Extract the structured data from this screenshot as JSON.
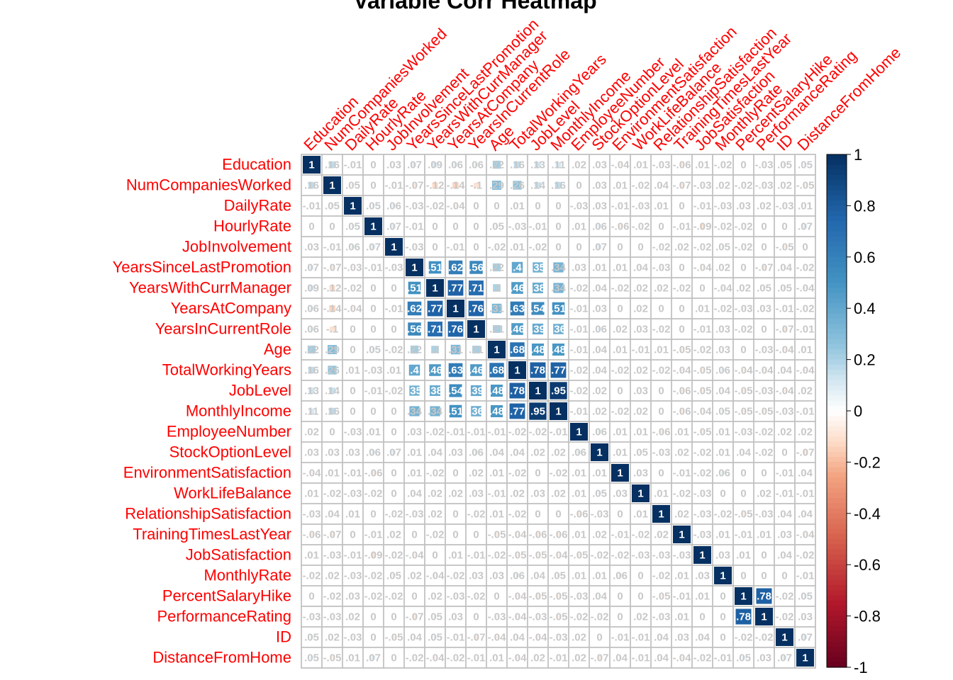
{
  "chart_data": {
    "type": "heatmap",
    "title": "Variable Corr Heatmap",
    "variables": [
      "Education",
      "NumCompaniesWorked",
      "DailyRate",
      "HourlyRate",
      "JobInvolvement",
      "YearsSinceLastPromotion",
      "YearsWithCurrManager",
      "YearsAtCompany",
      "YearsInCurrentRole",
      "Age",
      "TotalWorkingYears",
      "JobLevel",
      "MonthlyIncome",
      "EmployeeNumber",
      "StockOptionLevel",
      "EnvironmentSatisfaction",
      "WorkLifeBalance",
      "RelationshipSatisfaction",
      "TrainingTimesLastYear",
      "JobSatisfaction",
      "MonthlyRate",
      "PercentSalaryHike",
      "PerformanceRating",
      "ID",
      "DistanceFromHome"
    ],
    "matrix": [
      [
        1,
        0.16,
        -0.01,
        0,
        0.03,
        0.07,
        0.09,
        0.06,
        0.06,
        0.22,
        0.16,
        0.13,
        0.11,
        0.02,
        0.03,
        -0.04,
        0.01,
        -0.03,
        -0.06,
        0.01,
        -0.02,
        0,
        -0.03,
        0.05,
        0.05
      ],
      [
        0.16,
        1,
        0.05,
        0,
        -0.01,
        -0.07,
        -0.12,
        -0.14,
        -0.1,
        0.29,
        0.26,
        0.14,
        0.16,
        0,
        0.03,
        0.01,
        -0.02,
        0.04,
        -0.07,
        -0.03,
        0.02,
        -0.02,
        -0.03,
        0.02,
        -0.05
      ],
      [
        -0.01,
        0.05,
        1,
        0.05,
        0.06,
        -0.03,
        -0.02,
        -0.04,
        0,
        0,
        0.01,
        0,
        0,
        -0.03,
        0.03,
        -0.01,
        -0.03,
        0.01,
        0,
        -0.01,
        -0.03,
        0.03,
        0.02,
        -0.03,
        0.01
      ],
      [
        0,
        0,
        0.05,
        1,
        0.07,
        -0.01,
        0,
        0,
        0,
        0.05,
        -0.03,
        -0.01,
        0,
        0.01,
        0.06,
        -0.06,
        -0.02,
        0,
        -0.01,
        -0.09,
        -0.02,
        -0.02,
        0,
        0,
        0.07
      ],
      [
        0.03,
        -0.01,
        0.06,
        0.07,
        1,
        -0.03,
        0,
        -0.01,
        0,
        -0.02,
        0.01,
        -0.02,
        0,
        0,
        0.07,
        0,
        0,
        -0.02,
        0.02,
        -0.02,
        0.05,
        -0.02,
        0,
        -0.05,
        0
      ],
      [
        0.07,
        -0.07,
        -0.03,
        -0.01,
        -0.03,
        1,
        0.51,
        0.62,
        0.56,
        0.22,
        0.4,
        0.35,
        0.34,
        0.03,
        0.01,
        0.01,
        0.04,
        -0.03,
        0,
        -0.04,
        0.02,
        0,
        -0.07,
        0.04,
        -0.02
      ],
      [
        0.09,
        -0.12,
        -0.02,
        0,
        0,
        0.51,
        1,
        0.77,
        0.71,
        0.2,
        0.46,
        0.38,
        0.34,
        -0.02,
        0.04,
        -0.02,
        0.02,
        0.02,
        -0.02,
        0,
        -0.04,
        0.02,
        0.05,
        0.05,
        -0.04
      ],
      [
        0.06,
        -0.14,
        -0.04,
        0,
        -0.01,
        0.62,
        0.77,
        1,
        0.76,
        0.31,
        0.63,
        0.54,
        0.51,
        -0.01,
        0.03,
        0,
        0.02,
        0,
        0,
        0.01,
        -0.02,
        -0.03,
        0.03,
        -0.01,
        -0.02
      ],
      [
        0.06,
        -0.1,
        0,
        0,
        0,
        0.56,
        0.71,
        0.76,
        1,
        0.21,
        0.46,
        0.39,
        0.36,
        -0.01,
        0.06,
        0.02,
        0.03,
        -0.02,
        0,
        -0.01,
        0.03,
        -0.02,
        0,
        -0.07,
        -0.01
      ],
      [
        0.22,
        0.29,
        0,
        0.05,
        -0.02,
        0.22,
        0.2,
        0.31,
        0.21,
        1,
        0.68,
        0.48,
        0.48,
        -0.01,
        0.04,
        0.01,
        -0.01,
        0.01,
        -0.05,
        -0.02,
        0.03,
        0,
        -0.03,
        -0.04,
        0.01
      ],
      [
        0.16,
        0.26,
        0.01,
        -0.03,
        0.01,
        0.4,
        0.46,
        0.63,
        0.46,
        0.68,
        1,
        0.78,
        0.77,
        -0.02,
        0.04,
        -0.02,
        0.02,
        -0.02,
        -0.04,
        -0.05,
        0.06,
        -0.04,
        -0.04,
        0.04,
        -0.04
      ],
      [
        0.13,
        0.14,
        0,
        -0.01,
        -0.02,
        0.35,
        0.38,
        0.54,
        0.39,
        0.48,
        0.78,
        1,
        0.95,
        -0.02,
        0.02,
        0,
        0.03,
        0,
        -0.06,
        -0.05,
        0.04,
        -0.05,
        -0.03,
        -0.04,
        0.02
      ],
      [
        0.11,
        0.16,
        0,
        0,
        0,
        0.34,
        0.34,
        0.51,
        0.36,
        0.48,
        0.77,
        0.95,
        1,
        -0.01,
        0.02,
        -0.02,
        0.02,
        0,
        -0.06,
        -0.04,
        0.05,
        -0.05,
        -0.05,
        -0.03,
        -0.01
      ],
      [
        0.02,
        0,
        -0.03,
        0.01,
        0,
        0.03,
        -0.02,
        -0.01,
        -0.01,
        -0.01,
        -0.02,
        -0.02,
        -0.01,
        1,
        0.06,
        0.01,
        0.01,
        -0.06,
        0.01,
        -0.05,
        0.01,
        -0.03,
        -0.02,
        0.02,
        0.02
      ],
      [
        0.03,
        0.03,
        0.03,
        0.06,
        0.07,
        0.01,
        0.04,
        0.03,
        0.06,
        0.04,
        0.04,
        0.02,
        0.02,
        0.06,
        1,
        0.01,
        0.05,
        -0.03,
        0.02,
        -0.02,
        0.01,
        0.04,
        -0.02,
        0,
        -0.07
      ],
      [
        -0.04,
        0.01,
        -0.01,
        -0.06,
        0,
        0.01,
        -0.02,
        0,
        0.02,
        0.01,
        -0.02,
        0,
        -0.02,
        0.01,
        0.01,
        1,
        0.03,
        0,
        -0.01,
        -0.02,
        0.06,
        0,
        0,
        -0.01,
        0.04
      ],
      [
        0.01,
        -0.02,
        -0.03,
        -0.02,
        0,
        0.04,
        0.02,
        0.02,
        0.03,
        -0.01,
        0.02,
        0.03,
        0.02,
        0.01,
        0.05,
        0.03,
        1,
        0.01,
        -0.02,
        -0.03,
        0,
        0,
        0.02,
        -0.01,
        -0.01
      ],
      [
        -0.03,
        0.04,
        0.01,
        0,
        -0.02,
        -0.03,
        0.02,
        0,
        -0.02,
        0.01,
        -0.02,
        0,
        0,
        -0.06,
        -0.03,
        0,
        0.01,
        1,
        0.02,
        -0.03,
        -0.02,
        -0.05,
        -0.03,
        0.04,
        0.04
      ],
      [
        -0.06,
        -0.07,
        0,
        -0.01,
        0.02,
        0,
        -0.02,
        0,
        0,
        -0.05,
        -0.04,
        -0.06,
        -0.06,
        0.01,
        0.02,
        -0.01,
        -0.02,
        0.02,
        1,
        -0.03,
        0.01,
        -0.01,
        0.01,
        0.03,
        -0.04
      ],
      [
        0.01,
        -0.03,
        -0.01,
        -0.09,
        -0.02,
        -0.04,
        0,
        0.01,
        -0.01,
        -0.02,
        -0.05,
        -0.05,
        -0.04,
        -0.05,
        -0.02,
        -0.02,
        -0.03,
        -0.03,
        -0.03,
        1,
        0.03,
        0.01,
        0,
        0.04,
        -0.02
      ],
      [
        -0.02,
        0.02,
        -0.03,
        -0.02,
        0.05,
        0.02,
        -0.04,
        -0.02,
        0.03,
        0.03,
        0.06,
        0.04,
        0.05,
        0.01,
        0.01,
        0.06,
        0,
        -0.02,
        0.01,
        0.03,
        1,
        0,
        0,
        0,
        -0.01
      ],
      [
        0,
        -0.02,
        0.03,
        -0.02,
        -0.02,
        0,
        0.02,
        -0.03,
        -0.02,
        0,
        -0.04,
        -0.05,
        -0.05,
        -0.03,
        0.04,
        0,
        0,
        -0.05,
        -0.01,
        0.01,
        0,
        1,
        0.78,
        -0.02,
        0.05
      ],
      [
        -0.03,
        -0.03,
        0.02,
        0,
        0,
        -0.07,
        0.05,
        0.03,
        0,
        -0.03,
        -0.04,
        -0.03,
        -0.05,
        -0.02,
        -0.02,
        0,
        0.02,
        -0.03,
        0.01,
        0,
        0,
        0.78,
        1,
        -0.02,
        0.03
      ],
      [
        0.05,
        0.02,
        -0.03,
        0,
        -0.05,
        0.04,
        0.05,
        -0.01,
        -0.07,
        -0.04,
        0.04,
        -0.04,
        -0.03,
        0.02,
        0,
        -0.01,
        -0.01,
        0.04,
        0.03,
        0.04,
        0,
        -0.02,
        -0.02,
        1,
        0.07
      ],
      [
        0.05,
        -0.05,
        0.01,
        0.07,
        0,
        -0.02,
        -0.04,
        -0.02,
        -0.01,
        0.01,
        -0.04,
        0.02,
        -0.01,
        0.02,
        -0.07,
        0.04,
        -0.01,
        0.04,
        -0.04,
        -0.02,
        -0.01,
        0.05,
        0.03,
        0.07,
        1
      ]
    ],
    "color_scale": {
      "min": -1,
      "max": 1,
      "ticks": [
        "1",
        "0.8",
        "0.6",
        "0.4",
        "0.2",
        "0",
        "-0.2",
        "-0.4",
        "-0.6",
        "-0.8",
        "-1"
      ]
    },
    "label_color": "#ff0000",
    "grid_color": "#c0c0c0"
  }
}
